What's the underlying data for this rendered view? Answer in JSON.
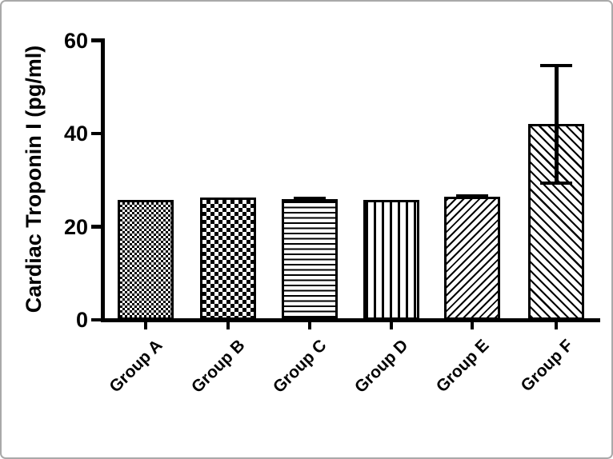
{
  "chart_data": {
    "type": "bar",
    "categories": [
      "Group A",
      "Group B",
      "Group C",
      "Group D",
      "Group E",
      "Group F"
    ],
    "values": [
      25.7,
      26.2,
      26.0,
      25.8,
      26.5,
      42.0
    ],
    "errors": [
      0,
      0,
      0.5,
      0,
      0.4,
      13.0
    ],
    "patterns": [
      "checker-fine",
      "checker-coarse",
      "hlines",
      "vlines",
      "diag-up",
      "diag-down"
    ],
    "title": "",
    "xlabel": "",
    "ylabel": "Cardiac Troponin I (pg/ml)",
    "yticks": [
      0,
      20,
      40,
      60
    ],
    "ylim": [
      0,
      60
    ],
    "grid": "off",
    "legend": "none",
    "bar_color": "#000000",
    "background_color": "#ffffff",
    "frame_color": "#a9a9a9"
  }
}
